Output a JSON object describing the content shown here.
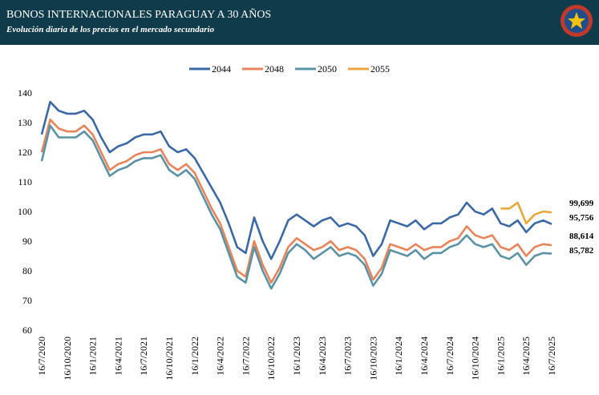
{
  "chart_data": {
    "type": "line",
    "title": "BONOS INTERNACIONALES PARAGUAY A 30 AÑOS",
    "subtitle": "Evolución diaria de los precios en el mercado secundario",
    "categories": [
      "16/7/2020",
      null,
      null,
      "16/10/2020",
      null,
      null,
      "16/1/2021",
      null,
      null,
      "16/4/2021",
      null,
      null,
      "16/7/2021",
      null,
      null,
      "16/10/2021",
      null,
      null,
      "16/1/2022",
      null,
      null,
      "16/4/2022",
      null,
      null,
      "16/7/2022",
      null,
      null,
      "16/10/2022",
      null,
      null,
      "16/1/2023",
      null,
      null,
      "16/4/2023",
      null,
      null,
      "16/7/2023",
      null,
      null,
      "16/10/2023",
      null,
      null,
      "16/1/2024",
      null,
      null,
      "16/4/2024",
      null,
      null,
      "16/7/2024",
      null,
      null,
      "16/10/2024",
      null,
      null,
      "16/1/2025",
      null,
      null,
      "16/4/2025",
      null,
      null,
      "16/7/2025"
    ],
    "series": [
      {
        "name": "2044",
        "color": "#3b69a6",
        "values": [
          126,
          137,
          134,
          133,
          133,
          134,
          131,
          125,
          120,
          122,
          123,
          125,
          126,
          126,
          127,
          122,
          120,
          121,
          118,
          113,
          108,
          103,
          96,
          88,
          86,
          98,
          90,
          84,
          90,
          97,
          99,
          97,
          95,
          97,
          98,
          95,
          96,
          95,
          92,
          85,
          89,
          97,
          96,
          95,
          97,
          94,
          96,
          96,
          98,
          99,
          103,
          100,
          99,
          101,
          96,
          95,
          97,
          93,
          96,
          97,
          95.756
        ],
        "value_labels": [
          null,
          null,
          null,
          null,
          null,
          null,
          null,
          null,
          null,
          null,
          null,
          null,
          null,
          null,
          null,
          null,
          null,
          null,
          null,
          null,
          null,
          null,
          null,
          null,
          null,
          null,
          null,
          null,
          null,
          null,
          null,
          null,
          null,
          null,
          null,
          null,
          null,
          null,
          null,
          null,
          null,
          null,
          null,
          null,
          null,
          null,
          null,
          null,
          null,
          null,
          null,
          null,
          null,
          null,
          null,
          null,
          null,
          null,
          null,
          null,
          "95,756"
        ]
      },
      {
        "name": "2048",
        "color": "#e8845a",
        "values": [
          120,
          131,
          128,
          127,
          127,
          129,
          126,
          120,
          114,
          116,
          117,
          119,
          120,
          120,
          121,
          116,
          114,
          116,
          113,
          107,
          101,
          96,
          88,
          80,
          78,
          90,
          82,
          76,
          81,
          88,
          91,
          89,
          87,
          88,
          90,
          87,
          88,
          87,
          84,
          77,
          81,
          89,
          88,
          87,
          89,
          87,
          88,
          88,
          90,
          91,
          95,
          92,
          91,
          92,
          88,
          87,
          89,
          85,
          88,
          89,
          88.614
        ],
        "value_labels": [
          null,
          null,
          null,
          null,
          null,
          null,
          null,
          null,
          null,
          null,
          null,
          null,
          null,
          null,
          null,
          null,
          null,
          null,
          null,
          null,
          null,
          null,
          null,
          null,
          null,
          null,
          null,
          null,
          null,
          null,
          null,
          null,
          null,
          null,
          null,
          null,
          null,
          null,
          null,
          null,
          null,
          null,
          null,
          null,
          null,
          null,
          null,
          null,
          null,
          null,
          null,
          null,
          null,
          null,
          null,
          null,
          null,
          null,
          null,
          null,
          "88,614"
        ]
      },
      {
        "name": "2050",
        "color": "#5b93a6",
        "values": [
          117,
          129,
          125,
          125,
          125,
          127,
          124,
          118,
          112,
          114,
          115,
          117,
          118,
          118,
          119,
          114,
          112,
          114,
          111,
          105,
          99,
          94,
          86,
          78,
          76,
          88,
          80,
          74,
          79,
          86,
          89,
          87,
          84,
          86,
          88,
          85,
          86,
          85,
          82,
          75,
          79,
          87,
          86,
          85,
          87,
          84,
          86,
          86,
          88,
          89,
          92,
          89,
          88,
          89,
          85,
          84,
          86,
          82,
          85,
          86,
          85.782
        ],
        "value_labels": [
          null,
          null,
          null,
          null,
          null,
          null,
          null,
          null,
          null,
          null,
          null,
          null,
          null,
          null,
          null,
          null,
          null,
          null,
          null,
          null,
          null,
          null,
          null,
          null,
          null,
          null,
          null,
          null,
          null,
          null,
          null,
          null,
          null,
          null,
          null,
          null,
          null,
          null,
          null,
          null,
          null,
          null,
          null,
          null,
          null,
          null,
          null,
          null,
          null,
          null,
          null,
          null,
          null,
          null,
          null,
          null,
          null,
          null,
          null,
          null,
          "85,782"
        ]
      },
      {
        "name": "2055",
        "color": "#e8a93a",
        "values": [
          null,
          null,
          null,
          null,
          null,
          null,
          null,
          null,
          null,
          null,
          null,
          null,
          null,
          null,
          null,
          null,
          null,
          null,
          null,
          null,
          null,
          null,
          null,
          null,
          null,
          null,
          null,
          null,
          null,
          null,
          null,
          null,
          null,
          null,
          null,
          null,
          null,
          null,
          null,
          null,
          null,
          null,
          null,
          null,
          null,
          null,
          null,
          null,
          null,
          null,
          null,
          null,
          null,
          null,
          101,
          101,
          103,
          96,
          99,
          100,
          99.699
        ],
        "value_labels": [
          null,
          null,
          null,
          null,
          null,
          null,
          null,
          null,
          null,
          null,
          null,
          null,
          null,
          null,
          null,
          null,
          null,
          null,
          null,
          null,
          null,
          null,
          null,
          null,
          null,
          null,
          null,
          null,
          null,
          null,
          null,
          null,
          null,
          null,
          null,
          null,
          null,
          null,
          null,
          null,
          null,
          null,
          null,
          null,
          null,
          null,
          null,
          null,
          null,
          null,
          null,
          null,
          null,
          null,
          null,
          null,
          null,
          null,
          null,
          null,
          "99,699"
        ]
      }
    ],
    "ylim": [
      60,
      140
    ],
    "yticks": [
      60,
      70,
      80,
      90,
      100,
      110,
      120,
      130,
      140
    ],
    "legend": "top"
  }
}
